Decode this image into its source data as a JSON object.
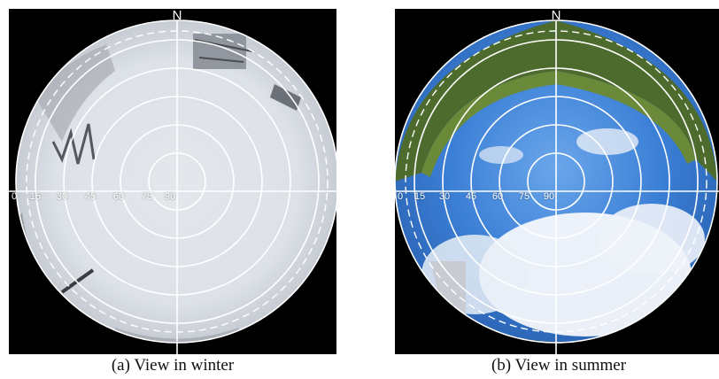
{
  "panels": [
    {
      "north_label": "N",
      "altitude_labels": [
        "0",
        "15",
        "30",
        "45",
        "60",
        "75",
        "90"
      ],
      "caption": "(a) View in winter",
      "colors": {
        "sky": "#dfe3ea",
        "snow": "#d6dbe3",
        "trees": "#55585e",
        "overlay": "#ffffff"
      }
    },
    {
      "north_label": "N",
      "altitude_labels": [
        "0",
        "15",
        "30",
        "45",
        "60",
        "75",
        "90"
      ],
      "caption": "(b) View in summer",
      "colors": {
        "sky": "#3b7fd6",
        "cloud": "#f4f7fb",
        "trees": "#4e6b2e",
        "overlay": "#ffffff"
      }
    }
  ]
}
